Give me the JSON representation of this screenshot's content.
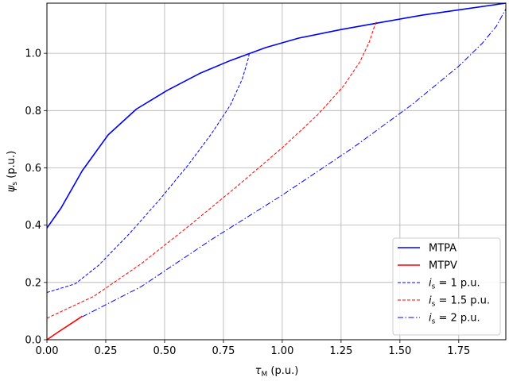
{
  "chart_data": {
    "type": "line",
    "xlabel": "τ_M (p.u.)",
    "ylabel": "ψ_s (p.u.)",
    "xlim": [
      0,
      1.95
    ],
    "ylim": [
      0,
      1.175
    ],
    "grid": true,
    "legend_placement": "lower-right",
    "xticks": [
      "0.00",
      "0.25",
      "0.50",
      "0.75",
      "1.00",
      "1.25",
      "1.50",
      "1.75"
    ],
    "yticks": [
      "0.0",
      "0.2",
      "0.4",
      "0.6",
      "0.8",
      "1.0"
    ],
    "xtick_values": [
      0,
      0.25,
      0.5,
      0.75,
      1.0,
      1.25,
      1.5,
      1.75
    ],
    "ytick_values": [
      0,
      0.2,
      0.4,
      0.6,
      0.8,
      1.0
    ],
    "series": [
      {
        "name": "MTPA",
        "legend_text": "MTPA",
        "color": "#0000ff",
        "dash": "solid",
        "points": [
          [
            0.0,
            0.39
          ],
          [
            0.06,
            0.46
          ],
          [
            0.15,
            0.59
          ],
          [
            0.26,
            0.715
          ],
          [
            0.38,
            0.805
          ],
          [
            0.51,
            0.87
          ],
          [
            0.65,
            0.93
          ],
          [
            0.78,
            0.975
          ],
          [
            0.93,
            1.02
          ],
          [
            1.07,
            1.053
          ],
          [
            1.25,
            1.083
          ],
          [
            1.42,
            1.108
          ],
          [
            1.6,
            1.134
          ],
          [
            1.78,
            1.155
          ],
          [
            1.95,
            1.175
          ]
        ]
      },
      {
        "name": "MTPV",
        "legend_text": "MTPV",
        "color": "#ff0000",
        "dash": "solid",
        "points": [
          [
            0.0,
            0.0
          ],
          [
            0.05,
            0.028
          ],
          [
            0.1,
            0.055
          ],
          [
            0.15,
            0.082
          ]
        ]
      },
      {
        "name": "i_s = 1 p.u.",
        "legend_prefix": "i",
        "legend_sub": "s",
        "legend_suffix": " =  1 p.u.",
        "color": "#0000ff",
        "dash": "dashed",
        "points": [
          [
            0.0,
            0.165
          ],
          [
            0.12,
            0.195
          ],
          [
            0.22,
            0.26
          ],
          [
            0.35,
            0.37
          ],
          [
            0.48,
            0.49
          ],
          [
            0.6,
            0.61
          ],
          [
            0.7,
            0.72
          ],
          [
            0.78,
            0.82
          ],
          [
            0.83,
            0.91
          ],
          [
            0.855,
            0.98
          ],
          [
            0.86,
            1.0
          ]
        ]
      },
      {
        "name": "i_s = 1.5 p.u.",
        "legend_prefix": "i",
        "legend_sub": "s",
        "legend_suffix": " =  1.5 p.u.",
        "color": "#ff0000",
        "dash": "dashed",
        "points": [
          [
            0.0,
            0.075
          ],
          [
            0.2,
            0.152
          ],
          [
            0.4,
            0.265
          ],
          [
            0.6,
            0.395
          ],
          [
            0.8,
            0.53
          ],
          [
            1.0,
            0.67
          ],
          [
            1.15,
            0.785
          ],
          [
            1.26,
            0.885
          ],
          [
            1.33,
            0.97
          ],
          [
            1.37,
            1.04
          ],
          [
            1.39,
            1.09
          ],
          [
            1.4,
            1.11
          ]
        ]
      },
      {
        "name": "i_s = 2 p.u.",
        "legend_prefix": "i",
        "legend_sub": "s",
        "legend_suffix": " =  2 p.u.",
        "color": "#0000ff",
        "dash": "dashdot",
        "points": [
          [
            0.15,
            0.08
          ],
          [
            0.4,
            0.185
          ],
          [
            0.7,
            0.35
          ],
          [
            1.0,
            0.505
          ],
          [
            1.3,
            0.67
          ],
          [
            1.55,
            0.82
          ],
          [
            1.75,
            0.955
          ],
          [
            1.85,
            1.035
          ],
          [
            1.91,
            1.095
          ],
          [
            1.95,
            1.155
          ]
        ]
      }
    ]
  }
}
